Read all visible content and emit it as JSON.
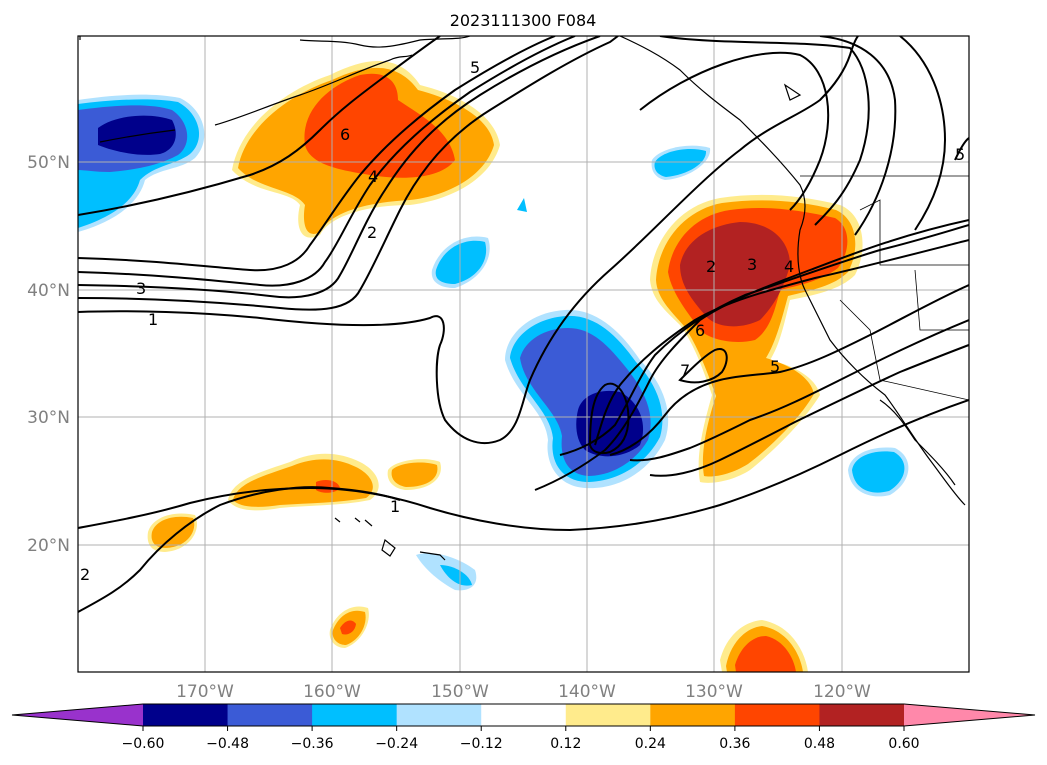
{
  "map": {
    "title": "2023111300 F084",
    "lat_labels": [
      "50°N",
      "40°N",
      "30°N",
      "20°N"
    ],
    "lon_labels": [
      "170°W",
      "160°W",
      "150°W",
      "140°W",
      "130°W",
      "120°W"
    ],
    "contour_labels": [
      "5",
      "6",
      "4",
      "2",
      "3",
      "1",
      "1",
      "2",
      "3",
      "4",
      "6",
      "7",
      "5",
      "5",
      "2"
    ]
  },
  "colorbar": {
    "ticks": [
      "−0.60",
      "−0.48",
      "−0.36",
      "−0.24",
      "−0.12",
      "0.12",
      "0.24",
      "0.36",
      "0.48",
      "0.60"
    ],
    "colors": [
      "#9932cc",
      "#00008b",
      "#3b5bd6",
      "#00bfff",
      "#b0e2ff",
      "#ffffff",
      "#ffeb8c",
      "#ffa500",
      "#ff4500",
      "#b22222",
      "#ff88aa"
    ]
  }
}
